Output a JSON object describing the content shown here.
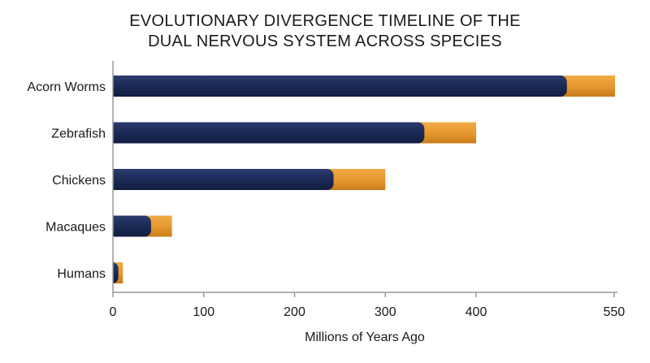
{
  "chart_data": {
    "type": "bar",
    "orientation": "horizontal",
    "stacked": true,
    "title": [
      "EVOLUTIONARY DIVERGENCE TIMELINE OF THE",
      "DUAL NERVOUS SYSTEM ACROSS SPECIES"
    ],
    "xlabel": "Millions of Years Ago",
    "ylabel": "",
    "categories": [
      "Acorn Worms",
      "Zebrafish",
      "Chickens",
      "Macaques",
      "Humans"
    ],
    "series": [
      {
        "color": "#1b2a55",
        "values": [
          500,
          343,
          243,
          42,
          6
        ]
      },
      {
        "color": "#e8992f",
        "values": [
          53,
          57,
          57,
          23,
          5
        ]
      }
    ],
    "totals": [
      553,
      400,
      300,
      65,
      11
    ],
    "xticks": [
      0,
      100,
      200,
      300,
      400,
      550
    ],
    "xlim": [
      0,
      555
    ],
    "grid": false,
    "legend": "none"
  }
}
